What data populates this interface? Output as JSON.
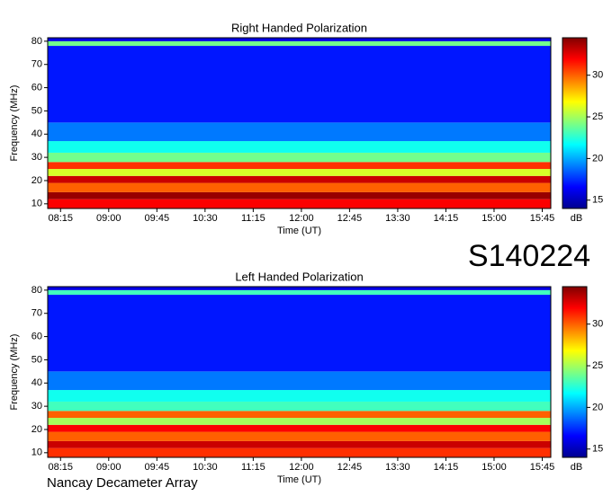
{
  "chart_data": [
    {
      "type": "heatmap",
      "title": "Right Handed Polarization",
      "x_label": "Time (UT)",
      "y_label": "Frequency (MHz)",
      "xlim": [
        483,
        953
      ],
      "xticks": [
        {
          "value": 495,
          "label": "08:15"
        },
        {
          "value": 540,
          "label": "09:00"
        },
        {
          "value": 585,
          "label": "09:45"
        },
        {
          "value": 630,
          "label": "10:30"
        },
        {
          "value": 675,
          "label": "11:15"
        },
        {
          "value": 720,
          "label": "12:00"
        },
        {
          "value": 765,
          "label": "12:45"
        },
        {
          "value": 810,
          "label": "13:30"
        },
        {
          "value": 855,
          "label": "14:15"
        },
        {
          "value": 900,
          "label": "15:00"
        },
        {
          "value": 945,
          "label": "15:45"
        }
      ],
      "ylim": [
        8,
        81.5
      ],
      "yticks": [
        10,
        20,
        30,
        40,
        50,
        60,
        70,
        80
      ],
      "freq_edges": [
        8,
        12,
        15,
        19,
        22,
        25,
        28,
        32,
        37,
        45,
        78,
        80,
        81.5
      ],
      "values": [
        32,
        34,
        30,
        33,
        26,
        31,
        24,
        22,
        19,
        17,
        24,
        16
      ],
      "colormap": "jet",
      "clim": [
        14,
        34.5
      ],
      "cticks": [
        15,
        20,
        25,
        30
      ],
      "colorbar_label": "dB"
    },
    {
      "type": "heatmap",
      "title": "Left Handed Polarization",
      "x_label": "Time (UT)",
      "y_label": "Frequency (MHz)",
      "xlim": [
        483,
        953
      ],
      "xticks": [
        {
          "value": 495,
          "label": "08:15"
        },
        {
          "value": 540,
          "label": "09:00"
        },
        {
          "value": 585,
          "label": "09:45"
        },
        {
          "value": 630,
          "label": "10:30"
        },
        {
          "value": 675,
          "label": "11:15"
        },
        {
          "value": 720,
          "label": "12:00"
        },
        {
          "value": 765,
          "label": "12:45"
        },
        {
          "value": 810,
          "label": "13:30"
        },
        {
          "value": 855,
          "label": "14:15"
        },
        {
          "value": 900,
          "label": "15:00"
        },
        {
          "value": 945,
          "label": "15:45"
        }
      ],
      "ylim": [
        8,
        81.5
      ],
      "yticks": [
        10,
        20,
        30,
        40,
        50,
        60,
        70,
        80
      ],
      "freq_edges": [
        8,
        12,
        15,
        19,
        22,
        25,
        28,
        32,
        37,
        45,
        78,
        80,
        81.5
      ],
      "values": [
        31,
        33,
        30,
        32,
        25,
        30,
        23,
        22,
        19,
        17,
        23,
        16
      ],
      "colormap": "jet",
      "clim": [
        14,
        34.5
      ],
      "cticks": [
        15,
        20,
        25,
        30
      ],
      "colorbar_label": "dB"
    }
  ],
  "observation_id": "S140224",
  "instrument": "Nancay Decameter Array"
}
